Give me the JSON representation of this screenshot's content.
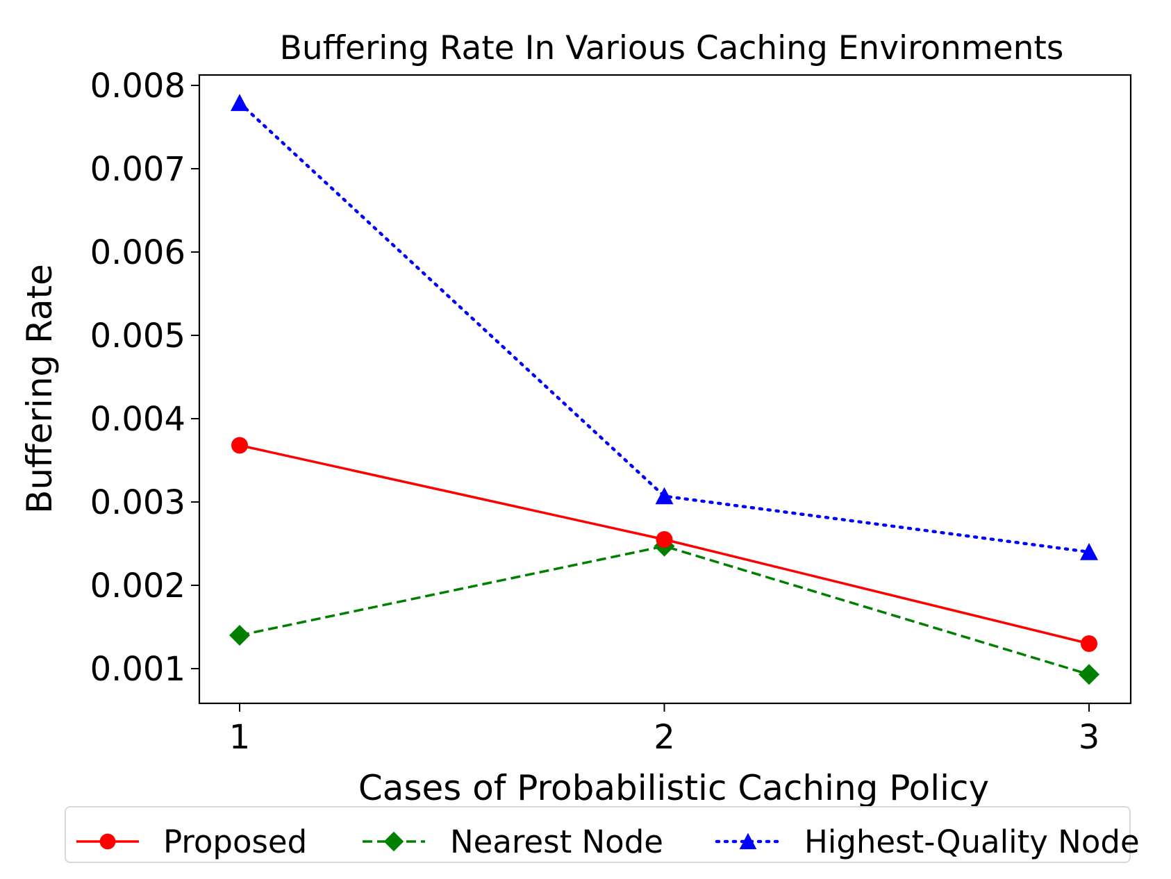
{
  "chart_data": {
    "type": "line",
    "title": "Buffering Rate In Various Caching Environments",
    "xlabel": "Cases of Probabilistic Caching Policy",
    "ylabel": "Buffering Rate",
    "x": [
      1,
      2,
      3
    ],
    "xticks": [
      "1",
      "2",
      "3"
    ],
    "yticks": [
      "0.001",
      "0.002",
      "0.003",
      "0.004",
      "0.005",
      "0.006",
      "0.007",
      "0.008"
    ],
    "ytick_values": [
      0.001,
      0.002,
      0.003,
      0.004,
      0.005,
      0.006,
      0.007,
      0.008
    ],
    "xlim": [
      0.9,
      3.1
    ],
    "ylim": [
      0.00054,
      0.00809
    ],
    "grid": false,
    "legend_position": "bottom-center",
    "series": [
      {
        "name": "Proposed",
        "values": [
          0.00368,
          0.00255,
          0.0013
        ],
        "color": "#ff0000",
        "linestyle": "solid",
        "marker": "circle"
      },
      {
        "name": "Nearest Node",
        "values": [
          0.0014,
          0.00247,
          0.00093
        ],
        "color": "#008000",
        "linestyle": "dashed",
        "marker": "diamond"
      },
      {
        "name": "Highest-Quality Node",
        "values": [
          0.00779,
          0.00307,
          0.0024
        ],
        "color": "#0000ff",
        "linestyle": "dotted",
        "marker": "triangle"
      }
    ]
  }
}
